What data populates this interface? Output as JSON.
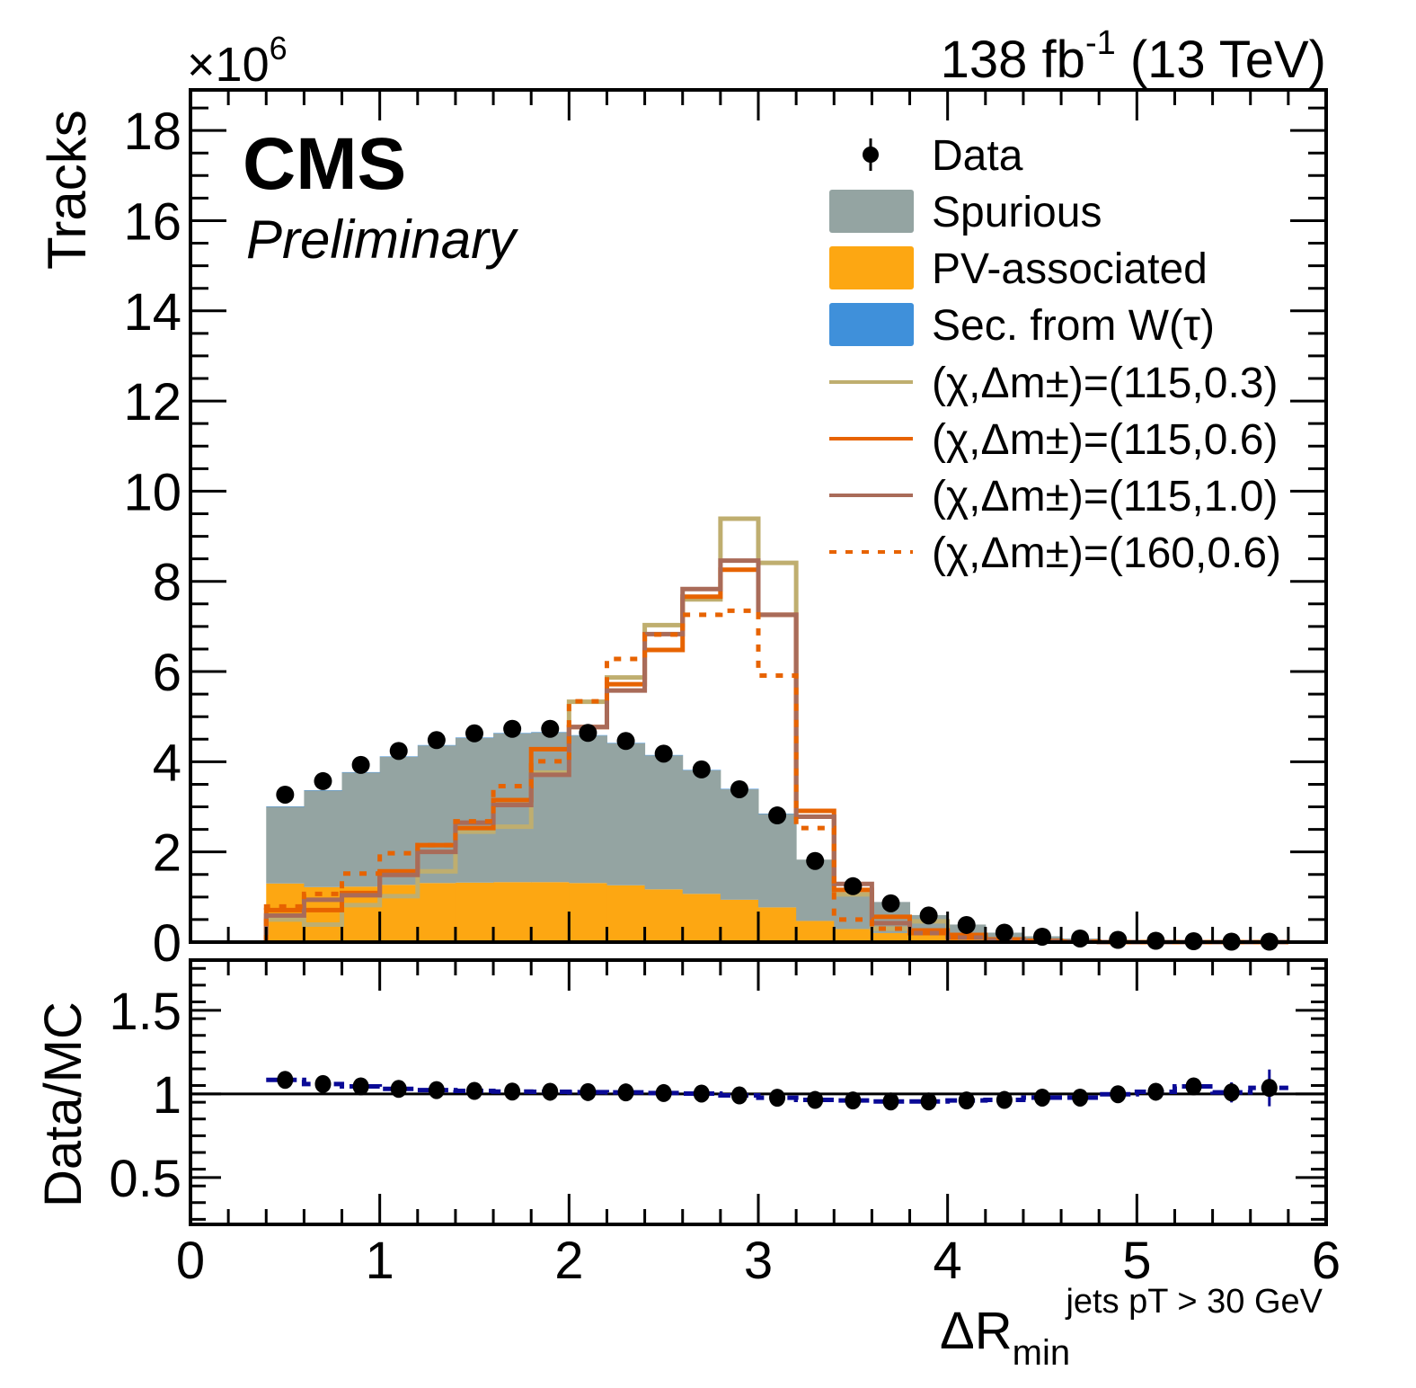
{
  "chart_data": {
    "type": "bar",
    "title_right": {
      "base": "138 fb",
      "sup": "-1",
      "rest": " (13 TeV)"
    },
    "experiment": "CMS",
    "status": "Preliminary",
    "y_multiplier": {
      "base": "×10",
      "sup": "6"
    },
    "ylabel": "Tracks",
    "xlabel": {
      "base": "ΔR",
      "sub": "min",
      "sup": "jets pT > 30 GeV"
    },
    "xlim": [
      0,
      6
    ],
    "ylim": [
      0,
      18.9
    ],
    "x_ticks": [
      "0",
      "1",
      "2",
      "3",
      "4",
      "5",
      "6"
    ],
    "y_ticks": [
      "0",
      "2",
      "4",
      "6",
      "8",
      "10",
      "12",
      "14",
      "16",
      "18"
    ],
    "bin_edges": [
      0.4,
      0.6,
      0.8,
      1.0,
      1.2,
      1.4,
      1.6,
      1.8,
      2.0,
      2.2,
      2.4,
      2.6,
      2.8,
      3.0,
      3.2,
      3.4,
      3.6,
      3.8,
      4.0,
      4.2,
      4.4,
      4.6,
      4.8,
      5.0,
      5.2,
      5.4,
      5.6,
      5.8
    ],
    "stack": [
      {
        "name": "PV-associated",
        "color": "#fda712",
        "values": [
          1.3,
          1.22,
          1.23,
          1.27,
          1.31,
          1.32,
          1.33,
          1.33,
          1.31,
          1.26,
          1.17,
          1.07,
          0.94,
          0.77,
          0.47,
          0.29,
          0.2,
          0.16,
          0.1,
          0.05,
          0.03,
          0.02,
          0.01,
          0.01,
          0.0,
          0.0,
          0.0
        ]
      },
      {
        "name": "Spurious",
        "color": "#94a4a2",
        "values": [
          1.7,
          2.14,
          2.53,
          2.84,
          3.05,
          3.21,
          3.3,
          3.32,
          3.27,
          3.15,
          2.97,
          2.74,
          2.45,
          2.07,
          1.36,
          0.8,
          0.69,
          0.44,
          0.29,
          0.16,
          0.1,
          0.06,
          0.04,
          0.03,
          0.02,
          0.01,
          0.01
        ]
      },
      {
        "name": "Sec. from W(τ)",
        "color": "#3f90da",
        "values": [
          0.01,
          0.01,
          0.01,
          0.01,
          0.01,
          0.01,
          0.01,
          0.01,
          0.01,
          0.01,
          0.01,
          0.01,
          0.01,
          0.01,
          0.0,
          0.0,
          0.0,
          0.0,
          0.0,
          0.0,
          0.0,
          0.0,
          0.0,
          0.0,
          0.0,
          0.0,
          0.0
        ]
      }
    ],
    "signals": [
      {
        "name": "(χ,Δm±)=(115,0.3)",
        "label": {
          "pre": "(χ,Δm",
          "sup": "±",
          "post": ")=(115,0.3)"
        },
        "color": "#bfae6f",
        "dashed": false,
        "values": [
          0.5,
          0.39,
          0.82,
          1.02,
          1.57,
          2.45,
          2.56,
          3.76,
          5.33,
          5.87,
          7.03,
          7.6,
          9.39,
          8.41,
          2.78,
          1.06,
          0.3,
          0.46,
          0.1,
          0.04,
          0.02,
          0.01,
          0.0,
          0.0,
          0.0,
          0.0,
          0.0
        ]
      },
      {
        "name": "(χ,Δm±)=(115,0.6)",
        "label": {
          "pre": "(χ,Δm",
          "sup": "±",
          "post": ")=(115,0.6)"
        },
        "color": "#e76300",
        "dashed": false,
        "values": [
          0.71,
          0.71,
          1.09,
          1.57,
          2.15,
          2.53,
          3.15,
          4.28,
          4.77,
          5.72,
          6.48,
          7.66,
          8.26,
          7.26,
          2.91,
          1.16,
          0.56,
          0.26,
          0.16,
          0.06,
          0.03,
          0.01,
          0.0,
          0.0,
          0.0,
          0.0,
          0.0
        ]
      },
      {
        "name": "(χ,Δm±)=(115,1.0)",
        "label": {
          "pre": "(χ,Δm",
          "sup": "±",
          "post": ")=(115,1.0)"
        },
        "color": "#a96b59",
        "dashed": false,
        "values": [
          0.59,
          0.94,
          1.04,
          1.49,
          2.0,
          2.65,
          3.04,
          3.71,
          4.77,
          5.58,
          6.83,
          7.83,
          8.46,
          7.26,
          2.78,
          1.29,
          0.42,
          0.2,
          0.1,
          0.04,
          0.02,
          0.01,
          0.0,
          0.0,
          0.0,
          0.0,
          0.0
        ]
      },
      {
        "name": "(χ,Δm±)=(160,0.6)",
        "label": {
          "pre": "(χ,Δm",
          "sup": "±",
          "post": ")=(160,0.6)"
        },
        "color": "#e76300",
        "dashed": true,
        "values": [
          0.79,
          1.07,
          1.52,
          1.97,
          2.15,
          2.68,
          3.46,
          4.01,
          5.34,
          6.28,
          6.82,
          7.26,
          7.35,
          5.91,
          2.53,
          0.5,
          0.3,
          0.2,
          0.1,
          0.04,
          0.02,
          0.01,
          0.0,
          0.0,
          0.0,
          0.0,
          0.0
        ]
      }
    ],
    "data": {
      "name": "Data",
      "x": [
        0.5,
        0.7,
        0.9,
        1.1,
        1.3,
        1.5,
        1.7,
        1.9,
        2.1,
        2.3,
        2.5,
        2.7,
        2.9,
        3.1,
        3.3,
        3.5,
        3.7,
        3.9,
        4.1,
        4.3,
        4.5,
        4.7,
        4.9,
        5.1,
        5.3,
        5.5,
        5.7
      ],
      "y": [
        3.27,
        3.57,
        3.93,
        4.24,
        4.48,
        4.63,
        4.73,
        4.73,
        4.64,
        4.46,
        4.18,
        3.83,
        3.39,
        2.81,
        1.8,
        1.24,
        0.86,
        0.59,
        0.38,
        0.21,
        0.12,
        0.08,
        0.05,
        0.03,
        0.02,
        0.01,
        0.01
      ]
    },
    "legend_order": [
      "Data",
      "Spurious",
      "PV-associated",
      "Sec. from W(τ)",
      "(χ,Δm±)=(115,0.3)",
      "(χ,Δm±)=(115,0.6)",
      "(χ,Δm±)=(115,1.0)",
      "(χ,Δm±)=(160,0.6)"
    ],
    "legend_placement": "top-right",
    "ratio": {
      "ylabel": "Data/MC",
      "ylim": [
        0.22,
        1.8
      ],
      "y_ticks": [
        "0.5",
        "1",
        "1.5"
      ],
      "reference": 1,
      "band_color": "#0a0a96",
      "values": [
        1.084,
        1.059,
        1.045,
        1.03,
        1.023,
        1.018,
        1.014,
        1.013,
        1.011,
        1.009,
        1.005,
        1.002,
        0.991,
        0.977,
        0.964,
        0.961,
        0.955,
        0.955,
        0.961,
        0.964,
        0.978,
        0.978,
        0.998,
        1.013,
        1.045,
        1.009,
        1.036
      ],
      "errors": [
        0.005,
        0.005,
        0.004,
        0.004,
        0.004,
        0.004,
        0.004,
        0.004,
        0.004,
        0.004,
        0.004,
        0.004,
        0.004,
        0.005,
        0.006,
        0.007,
        0.008,
        0.01,
        0.012,
        0.015,
        0.02,
        0.025,
        0.03,
        0.04,
        0.05,
        0.06,
        0.11
      ]
    }
  }
}
